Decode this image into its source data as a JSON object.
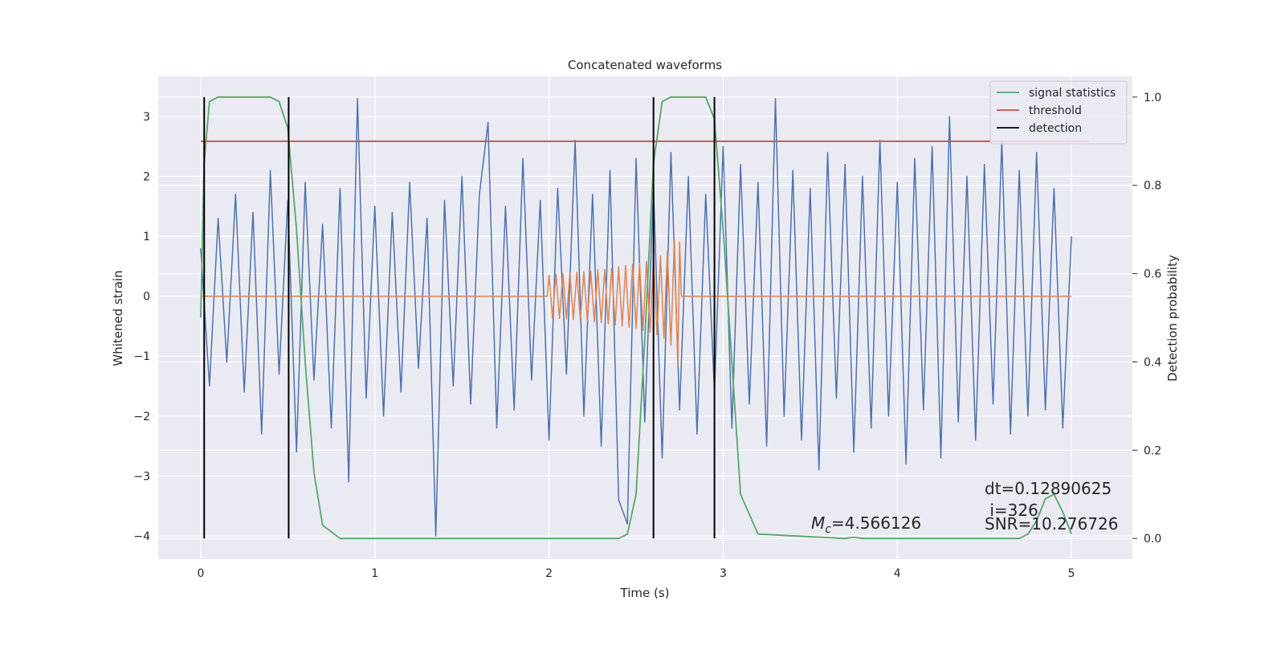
{
  "chart_data": {
    "type": "line",
    "title": "Concatenated waveforms",
    "xlabel": "Time (s)",
    "ylabel": "Whitened strain",
    "y2label": "Detection probability",
    "xlim": [
      -0.244,
      5.35
    ],
    "ylim": [
      -4.39,
      3.67
    ],
    "y2lim": [
      -0.047,
      1.047
    ],
    "xticks": [
      0,
      1,
      2,
      3,
      4,
      5
    ],
    "yticks": [
      {
        "value": -4,
        "label": "−4"
      },
      {
        "value": -3,
        "label": "−3"
      },
      {
        "value": -2,
        "label": "−2"
      },
      {
        "value": -1,
        "label": "−1"
      },
      0,
      1,
      2,
      3
    ],
    "y2ticks": [
      {
        "value": 0,
        "label": "0.0"
      },
      0.2,
      0.4,
      0.6,
      0.8,
      {
        "value": 1,
        "label": "1.0"
      }
    ],
    "grid": true,
    "legend": "upper right",
    "series": [
      {
        "color": "#4c72b0",
        "x": [
          0,
          0.05,
          0.1,
          0.15,
          0.2,
          0.25,
          0.3,
          0.35,
          0.4,
          0.45,
          0.5,
          0.55,
          0.6,
          0.65,
          0.7,
          0.75,
          0.8,
          0.85,
          0.9,
          0.95,
          1,
          1.05,
          1.1,
          1.15,
          1.2,
          1.25,
          1.3,
          1.35,
          1.4,
          1.45,
          1.5,
          1.55,
          1.6,
          1.65,
          1.7,
          1.75,
          1.8,
          1.85,
          1.9,
          1.95,
          2,
          2.05,
          2.1,
          2.15,
          2.2,
          2.25,
          2.3,
          2.35,
          2.4,
          2.45,
          2.5,
          2.55,
          2.6,
          2.65,
          2.7,
          2.75,
          2.8,
          2.85,
          2.9,
          2.95,
          3,
          3.05,
          3.1,
          3.15,
          3.2,
          3.25,
          3.3,
          3.35,
          3.4,
          3.45,
          3.5,
          3.55,
          3.6,
          3.65,
          3.7,
          3.75,
          3.8,
          3.85,
          3.9,
          3.95,
          4,
          4.05,
          4.1,
          4.15,
          4.2,
          4.25,
          4.3,
          4.35,
          4.4,
          4.45,
          4.5,
          4.55,
          4.6,
          4.65,
          4.7,
          4.75,
          4.8,
          4.85,
          4.9,
          4.95,
          5
        ],
        "values": [
          0.8,
          -1.5,
          1.3,
          -1.1,
          1.7,
          -1.6,
          1.4,
          -2.3,
          2.1,
          -1.3,
          1.6,
          -2.6,
          1.9,
          -1.4,
          1.2,
          -2.2,
          1.8,
          -3.1,
          3.3,
          -1.7,
          1.5,
          -2.0,
          1.4,
          -1.6,
          1.9,
          -1.2,
          1.3,
          -4.0,
          1.6,
          -1.5,
          2.0,
          -1.8,
          1.7,
          2.9,
          -2.2,
          1.5,
          -1.9,
          2.3,
          -1.4,
          1.6,
          -2.4,
          1.8,
          -1.3,
          2.6,
          -2.0,
          1.7,
          -2.5,
          2.1,
          -3.4,
          -3.8,
          2.3,
          -2.1,
          1.8,
          -2.7,
          2.4,
          -1.9,
          2.0,
          -2.3,
          1.7,
          -1.6,
          2.5,
          -2.2,
          2.2,
          -1.8,
          1.9,
          -2.5,
          3.3,
          -2.0,
          2.1,
          -2.4,
          1.8,
          -2.9,
          2.4,
          -1.7,
          2.2,
          -2.6,
          2.0,
          -2.2,
          2.6,
          -2.0,
          1.9,
          -2.8,
          2.3,
          -1.9,
          2.5,
          -2.7,
          3.0,
          -2.1,
          2.0,
          -2.4,
          2.2,
          -1.8,
          2.6,
          -2.3,
          2.1,
          -2.0,
          2.4,
          -1.9,
          1.8,
          -2.2,
          1.0
        ]
      },
      {
        "color": "#dd8452",
        "x": [
          0,
          1.99,
          2.0,
          2.02,
          2.04,
          2.06,
          2.08,
          2.1,
          2.12,
          2.14,
          2.16,
          2.18,
          2.2,
          2.22,
          2.24,
          2.26,
          2.28,
          2.3,
          2.32,
          2.34,
          2.36,
          2.38,
          2.4,
          2.42,
          2.44,
          2.46,
          2.48,
          2.5,
          2.52,
          2.54,
          2.56,
          2.58,
          2.6,
          2.62,
          2.64,
          2.66,
          2.68,
          2.7,
          2.72,
          2.74,
          2.75,
          2.76,
          5
        ],
        "values": [
          0,
          0,
          0.35,
          -0.36,
          0.37,
          -0.37,
          0.38,
          -0.38,
          0.39,
          -0.39,
          0.4,
          -0.4,
          0.41,
          -0.41,
          0.42,
          -0.43,
          0.44,
          -0.44,
          0.45,
          -0.46,
          0.47,
          -0.48,
          0.49,
          -0.5,
          0.51,
          -0.52,
          0.53,
          -0.54,
          0.55,
          -0.57,
          0.58,
          -0.6,
          0.62,
          -0.64,
          0.67,
          -0.7,
          0.75,
          -0.82,
          0.95,
          -1.2,
          0.9,
          0,
          0
        ]
      },
      {
        "name": "signal statistics",
        "color": "#55a868",
        "axis": "y2",
        "x": [
          0,
          0.02,
          0.05,
          0.1,
          0.4,
          0.45,
          0.5,
          0.55,
          0.6,
          0.65,
          0.7,
          0.8,
          2.4,
          2.45,
          2.5,
          2.55,
          2.6,
          2.65,
          2.7,
          2.9,
          2.95,
          3.0,
          3.05,
          3.1,
          3.2,
          3.7,
          3.75,
          3.8,
          4.7,
          4.75,
          4.8,
          4.85,
          4.9,
          4.95,
          5.0
        ],
        "values": [
          0.5,
          0.85,
          0.99,
          1.0,
          1.0,
          0.99,
          0.93,
          0.7,
          0.4,
          0.15,
          0.03,
          0.0,
          0.0,
          0.01,
          0.1,
          0.45,
          0.85,
          0.99,
          1.0,
          1.0,
          0.95,
          0.7,
          0.4,
          0.1,
          0.01,
          0.0,
          0.003,
          0.0,
          0.0,
          0.01,
          0.04,
          0.09,
          0.1,
          0.06,
          0.01
        ]
      },
      {
        "name": "threshold",
        "color": "#c44e52",
        "axis": "y2",
        "x": [
          0,
          5.1
        ],
        "values": [
          0.9,
          0.9
        ]
      },
      {
        "name": "detection",
        "color": "#000000",
        "axis": "y2",
        "kind": "vlines",
        "x": [
          0.02,
          0.505,
          2.6,
          2.95
        ],
        "ymin": 0,
        "ymax": 1
      }
    ],
    "annotations": [
      {
        "symbol": "M",
        "subscript": "c",
        "text": "=4.566126"
      },
      {
        "lines": [
          "dt=0.12890625",
          " i=326",
          "SNR=10.276726"
        ]
      }
    ]
  }
}
